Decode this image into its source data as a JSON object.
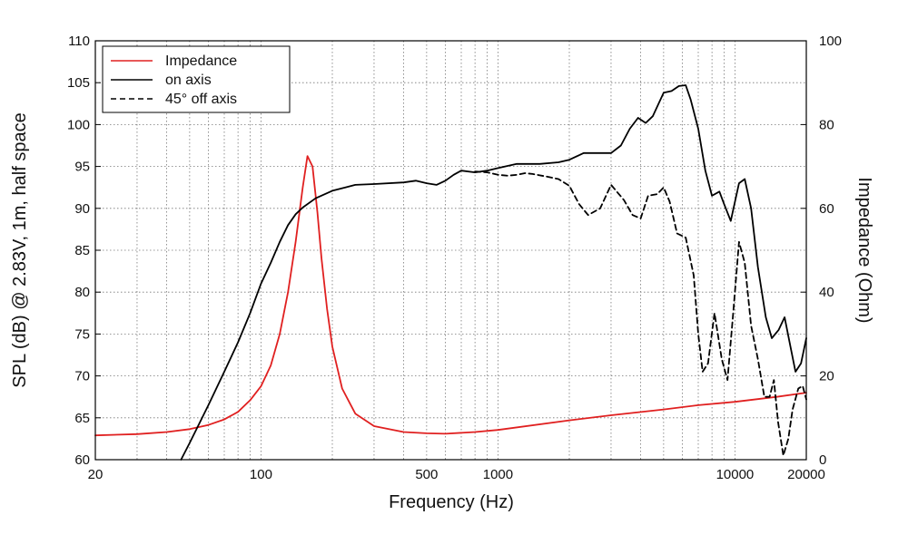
{
  "chart_data": {
    "type": "line",
    "xlabel": "Frequency (Hz)",
    "ylabel": "SPL (dB) @ 2.83V, 1m, half space",
    "y2label": "Impedance (Ohm)",
    "xscale": "log",
    "xlim": [
      20,
      20000
    ],
    "ylim": [
      60,
      110
    ],
    "y2lim": [
      0,
      100
    ],
    "xticks": [
      {
        "value": 20,
        "label": "20"
      },
      {
        "value": 100,
        "label": "100"
      },
      {
        "value": 500,
        "label": "500"
      },
      {
        "value": 1000,
        "label": "1000"
      },
      {
        "value": 10000,
        "label": "10000"
      },
      {
        "value": 20000,
        "label": "20000"
      }
    ],
    "yticks": [
      {
        "value": 60,
        "label": "60"
      },
      {
        "value": 65,
        "label": "65"
      },
      {
        "value": 70,
        "label": "70"
      },
      {
        "value": 75,
        "label": "75"
      },
      {
        "value": 80,
        "label": "80"
      },
      {
        "value": 85,
        "label": "85"
      },
      {
        "value": 90,
        "label": "90"
      },
      {
        "value": 95,
        "label": "95"
      },
      {
        "value": 100,
        "label": "100"
      },
      {
        "value": 105,
        "label": "105"
      },
      {
        "value": 110,
        "label": "110"
      }
    ],
    "y2ticks": [
      {
        "value": 0,
        "label": "0"
      },
      {
        "value": 20,
        "label": "20"
      },
      {
        "value": 40,
        "label": "40"
      },
      {
        "value": 60,
        "label": "60"
      },
      {
        "value": 80,
        "label": "80"
      },
      {
        "value": 100,
        "label": "100"
      }
    ],
    "grid": true,
    "legend_position": "top-left",
    "series": [
      {
        "name": "Impedance",
        "axis": "right",
        "color": "#e02020",
        "style": "solid",
        "points": [
          [
            20,
            5.8
          ],
          [
            30,
            6.1
          ],
          [
            40,
            6.6
          ],
          [
            50,
            7.3
          ],
          [
            60,
            8.3
          ],
          [
            70,
            9.6
          ],
          [
            80,
            11.4
          ],
          [
            90,
            14.2
          ],
          [
            100,
            17.5
          ],
          [
            110,
            22.5
          ],
          [
            120,
            30
          ],
          [
            130,
            40
          ],
          [
            140,
            52
          ],
          [
            150,
            65
          ],
          [
            157,
            72.5
          ],
          [
            165,
            70
          ],
          [
            173,
            59
          ],
          [
            180,
            48
          ],
          [
            190,
            36
          ],
          [
            200,
            27
          ],
          [
            220,
            17
          ],
          [
            250,
            11
          ],
          [
            300,
            8
          ],
          [
            400,
            6.6
          ],
          [
            500,
            6.3
          ],
          [
            600,
            6.2
          ],
          [
            800,
            6.6
          ],
          [
            1000,
            7.1
          ],
          [
            2000,
            9.4
          ],
          [
            3000,
            10.6
          ],
          [
            5000,
            12
          ],
          [
            7000,
            13
          ],
          [
            10000,
            13.8
          ],
          [
            15000,
            15
          ],
          [
            20000,
            16
          ]
        ]
      },
      {
        "name": "on axis",
        "axis": "left",
        "color": "#000000",
        "style": "solid",
        "points": [
          [
            46,
            60
          ],
          [
            50,
            62
          ],
          [
            60,
            66.5
          ],
          [
            70,
            70.5
          ],
          [
            80,
            74
          ],
          [
            90,
            77.5
          ],
          [
            100,
            81
          ],
          [
            110,
            83.5
          ],
          [
            120,
            86
          ],
          [
            130,
            88
          ],
          [
            140,
            89.3
          ],
          [
            150,
            90.1
          ],
          [
            170,
            91.2
          ],
          [
            200,
            92.1
          ],
          [
            250,
            92.8
          ],
          [
            300,
            92.9
          ],
          [
            400,
            93.1
          ],
          [
            450,
            93.3
          ],
          [
            500,
            93.0
          ],
          [
            550,
            92.8
          ],
          [
            600,
            93.3
          ],
          [
            650,
            94.0
          ],
          [
            700,
            94.5
          ],
          [
            800,
            94.3
          ],
          [
            900,
            94.5
          ],
          [
            1000,
            94.8
          ],
          [
            1200,
            95.3
          ],
          [
            1500,
            95.3
          ],
          [
            1800,
            95.5
          ],
          [
            2000,
            95.8
          ],
          [
            2300,
            96.6
          ],
          [
            2500,
            96.6
          ],
          [
            2800,
            96.6
          ],
          [
            3000,
            96.6
          ],
          [
            3300,
            97.5
          ],
          [
            3600,
            99.5
          ],
          [
            3900,
            100.8
          ],
          [
            4200,
            100.2
          ],
          [
            4500,
            101.0
          ],
          [
            5000,
            103.8
          ],
          [
            5400,
            104.0
          ],
          [
            5800,
            104.6
          ],
          [
            6200,
            104.7
          ],
          [
            6500,
            103
          ],
          [
            7000,
            99.5
          ],
          [
            7500,
            94.5
          ],
          [
            8000,
            91.5
          ],
          [
            8600,
            92
          ],
          [
            9000,
            90.5
          ],
          [
            9600,
            88.5
          ],
          [
            10400,
            93.0
          ],
          [
            11000,
            93.5
          ],
          [
            11700,
            90
          ],
          [
            12500,
            83
          ],
          [
            13500,
            77
          ],
          [
            14300,
            74.5
          ],
          [
            15300,
            75.5
          ],
          [
            16200,
            77
          ],
          [
            17000,
            74
          ],
          [
            18000,
            70.5
          ],
          [
            19000,
            71.5
          ],
          [
            20000,
            74.5
          ]
        ]
      },
      {
        "name": "45° off axis",
        "axis": "left",
        "color": "#000000",
        "style": "dashed",
        "points": [
          [
            800,
            94.4
          ],
          [
            900,
            94.3
          ],
          [
            1000,
            94.0
          ],
          [
            1100,
            93.9
          ],
          [
            1200,
            94.0
          ],
          [
            1300,
            94.2
          ],
          [
            1400,
            94.1
          ],
          [
            1600,
            93.8
          ],
          [
            1800,
            93.5
          ],
          [
            2000,
            92.7
          ],
          [
            2200,
            90.5
          ],
          [
            2400,
            89.2
          ],
          [
            2700,
            90.0
          ],
          [
            3000,
            92.8
          ],
          [
            3400,
            91.0
          ],
          [
            3700,
            89.2
          ],
          [
            4000,
            88.8
          ],
          [
            4300,
            91.5
          ],
          [
            4700,
            91.7
          ],
          [
            5000,
            92.5
          ],
          [
            5300,
            90.8
          ],
          [
            5700,
            87
          ],
          [
            6200,
            86.5
          ],
          [
            6700,
            82
          ],
          [
            7000,
            75
          ],
          [
            7300,
            70.5
          ],
          [
            7700,
            71.5
          ],
          [
            8200,
            77.5
          ],
          [
            8800,
            72
          ],
          [
            9300,
            69.5
          ],
          [
            9800,
            77
          ],
          [
            10400,
            86.0
          ],
          [
            11000,
            83.5
          ],
          [
            11700,
            76
          ],
          [
            12500,
            72
          ],
          [
            13300,
            67.5
          ],
          [
            14000,
            67.5
          ],
          [
            14600,
            69.5
          ],
          [
            15200,
            64.5
          ],
          [
            16000,
            60.5
          ],
          [
            16800,
            62.5
          ],
          [
            17500,
            66
          ],
          [
            18500,
            68.5
          ],
          [
            19300,
            68.8
          ],
          [
            20000,
            67.2
          ]
        ]
      }
    ]
  }
}
